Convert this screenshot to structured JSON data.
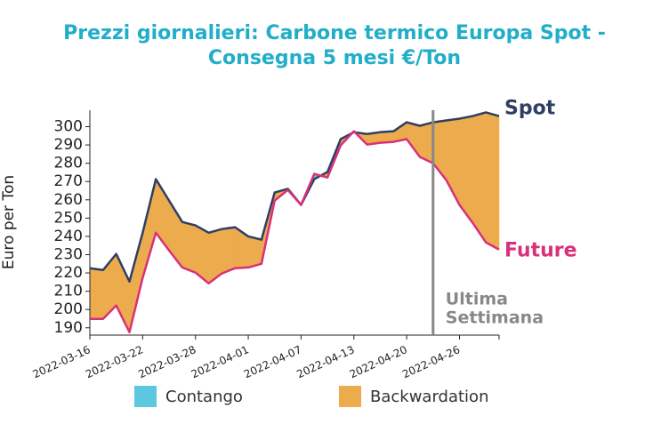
{
  "chart_data": {
    "type": "line",
    "title": [
      "Prezzi giornalieri: Carbone termico Europa Spot -",
      "Consegna 5 mesi €/Ton"
    ],
    "y_label": "Euro per Ton",
    "categories": [
      "2022-03-16",
      null,
      null,
      null,
      "2022-03-22",
      null,
      null,
      null,
      "2022-03-28",
      null,
      null,
      null,
      "2022-04-01",
      null,
      null,
      null,
      "2022-04-07",
      null,
      null,
      null,
      "2022-04-13",
      null,
      null,
      null,
      "2022-04-20",
      null,
      null,
      null,
      "2022-04-26",
      null,
      null,
      null
    ],
    "series": [
      {
        "name": "Spot",
        "color": "#2e3f63",
        "values": [
          222.6,
          221.6,
          230.4,
          215.3,
          242,
          271.3,
          259.6,
          247.9,
          246,
          242,
          244,
          245,
          240,
          238.2,
          264,
          266,
          257.2,
          271.3,
          275.2,
          293.2,
          297,
          296,
          297,
          297.5,
          302.4,
          300.5,
          302.4,
          303.4,
          304.4,
          305.8,
          307.8,
          305.8
        ]
      },
      {
        "name": "Future",
        "color": "#d9307a",
        "values": [
          194.9,
          194.9,
          202.2,
          187.6,
          217.3,
          242,
          232.3,
          223,
          220.2,
          214.3,
          219.7,
          222.6,
          223,
          225,
          259.6,
          265.4,
          257.2,
          274.2,
          272.2,
          289.8,
          297.5,
          290.2,
          291.2,
          291.7,
          293.2,
          283.4,
          280,
          270.8,
          257.2,
          247.4,
          236.7,
          232.8
        ]
      }
    ],
    "areas": [
      {
        "name": "Contango",
        "color": "#5bc8e0"
      },
      {
        "name": "Backwardation",
        "color": "#ecab4d"
      }
    ],
    "ylim": [
      186,
      309
    ],
    "yticks": [
      190,
      200,
      210,
      220,
      230,
      240,
      250,
      260,
      270,
      280,
      290,
      300
    ],
    "vline": {
      "index": 26,
      "color": "#888888",
      "label": [
        "Ultima",
        "Settimana"
      ]
    }
  }
}
